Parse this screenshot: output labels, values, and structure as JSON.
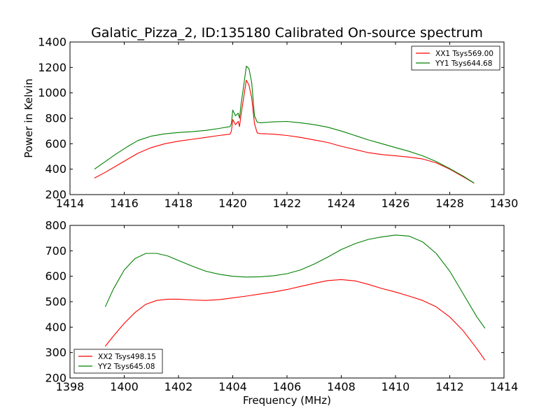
{
  "chart_data": [
    {
      "type": "line",
      "title": "Galatic_Pizza_2, ID:135180 Calibrated On-source spectrum",
      "xlabel": "",
      "ylabel": "Power in Kelvin",
      "xlim": [
        1414,
        1430
      ],
      "ylim": [
        200,
        1400
      ],
      "xticks": [
        1414,
        1416,
        1418,
        1420,
        1422,
        1424,
        1426,
        1428,
        1430
      ],
      "yticks": [
        200,
        400,
        600,
        800,
        1000,
        1200,
        1400
      ],
      "legend_position": "top-right",
      "series": [
        {
          "name": "XX1 Tsys569.00",
          "color": "#ff0000",
          "x": [
            1414.9,
            1415.3,
            1415.7,
            1416.1,
            1416.5,
            1417.0,
            1417.5,
            1418.0,
            1418.5,
            1419.0,
            1419.5,
            1419.9,
            1419.95,
            1420.0,
            1420.1,
            1420.2,
            1420.25,
            1420.3,
            1420.4,
            1420.5,
            1420.6,
            1420.7,
            1420.8,
            1420.9,
            1421.0,
            1421.5,
            1422.0,
            1422.5,
            1423.0,
            1423.5,
            1424.0,
            1424.5,
            1425.0,
            1425.5,
            1426.0,
            1426.5,
            1427.0,
            1427.5,
            1428.0,
            1428.5,
            1428.9
          ],
          "values": [
            330,
            375,
            425,
            475,
            525,
            570,
            600,
            620,
            635,
            650,
            665,
            675,
            700,
            790,
            750,
            775,
            735,
            820,
            960,
            1100,
            1060,
            960,
            760,
            685,
            680,
            675,
            665,
            650,
            630,
            610,
            580,
            555,
            530,
            515,
            505,
            495,
            480,
            450,
            400,
            340,
            290
          ]
        },
        {
          "name": "YY1 Tsys644.68",
          "color": "#008000",
          "x": [
            1414.9,
            1415.3,
            1415.7,
            1416.1,
            1416.5,
            1417.0,
            1417.5,
            1418.0,
            1418.5,
            1419.0,
            1419.5,
            1419.9,
            1419.95,
            1420.0,
            1420.1,
            1420.2,
            1420.25,
            1420.3,
            1420.4,
            1420.5,
            1420.6,
            1420.7,
            1420.8,
            1420.9,
            1421.0,
            1421.5,
            1422.0,
            1422.5,
            1423.0,
            1423.5,
            1424.0,
            1424.5,
            1425.0,
            1425.5,
            1426.0,
            1426.5,
            1427.0,
            1427.5,
            1428.0,
            1428.5,
            1428.9
          ],
          "values": [
            400,
            460,
            520,
            575,
            625,
            660,
            678,
            688,
            695,
            705,
            720,
            735,
            760,
            865,
            820,
            840,
            800,
            900,
            1050,
            1210,
            1190,
            1080,
            820,
            770,
            765,
            772,
            775,
            765,
            750,
            730,
            700,
            665,
            630,
            600,
            570,
            540,
            505,
            460,
            405,
            345,
            290
          ]
        }
      ]
    },
    {
      "type": "line",
      "title": "",
      "xlabel": "Frequency (MHz)",
      "ylabel": "",
      "xlim": [
        1398,
        1414
      ],
      "ylim": [
        200,
        800
      ],
      "xticks": [
        1398,
        1400,
        1402,
        1404,
        1406,
        1408,
        1410,
        1412,
        1414
      ],
      "yticks": [
        200,
        300,
        400,
        500,
        600,
        700,
        800
      ],
      "legend_position": "bottom-left",
      "series": [
        {
          "name": "XX2 Tsys498.15",
          "color": "#ff0000",
          "x": [
            1399.3,
            1399.6,
            1400.0,
            1400.4,
            1400.8,
            1401.2,
            1401.6,
            1402.0,
            1402.5,
            1403.0,
            1403.5,
            1404.0,
            1404.5,
            1405.0,
            1405.5,
            1406.0,
            1406.5,
            1407.0,
            1407.5,
            1408.0,
            1408.5,
            1409.0,
            1409.5,
            1410.0,
            1410.5,
            1411.0,
            1411.5,
            1412.0,
            1412.5,
            1413.0,
            1413.3
          ],
          "values": [
            325,
            365,
            415,
            458,
            490,
            505,
            510,
            510,
            507,
            505,
            508,
            515,
            522,
            530,
            538,
            548,
            560,
            572,
            583,
            587,
            582,
            568,
            552,
            538,
            522,
            505,
            480,
            440,
            385,
            315,
            270
          ]
        },
        {
          "name": "YY2 Tsys645.08",
          "color": "#008000",
          "x": [
            1399.3,
            1399.6,
            1400.0,
            1400.4,
            1400.8,
            1401.2,
            1401.6,
            1402.0,
            1402.5,
            1403.0,
            1403.5,
            1404.0,
            1404.5,
            1405.0,
            1405.5,
            1406.0,
            1406.5,
            1407.0,
            1407.5,
            1408.0,
            1408.5,
            1409.0,
            1409.5,
            1410.0,
            1410.5,
            1411.0,
            1411.5,
            1412.0,
            1412.5,
            1413.0,
            1413.3
          ],
          "values": [
            480,
            550,
            625,
            670,
            690,
            690,
            680,
            662,
            640,
            620,
            608,
            600,
            597,
            598,
            602,
            610,
            625,
            648,
            675,
            705,
            728,
            745,
            755,
            762,
            758,
            735,
            690,
            620,
            530,
            440,
            395
          ]
        }
      ]
    }
  ]
}
